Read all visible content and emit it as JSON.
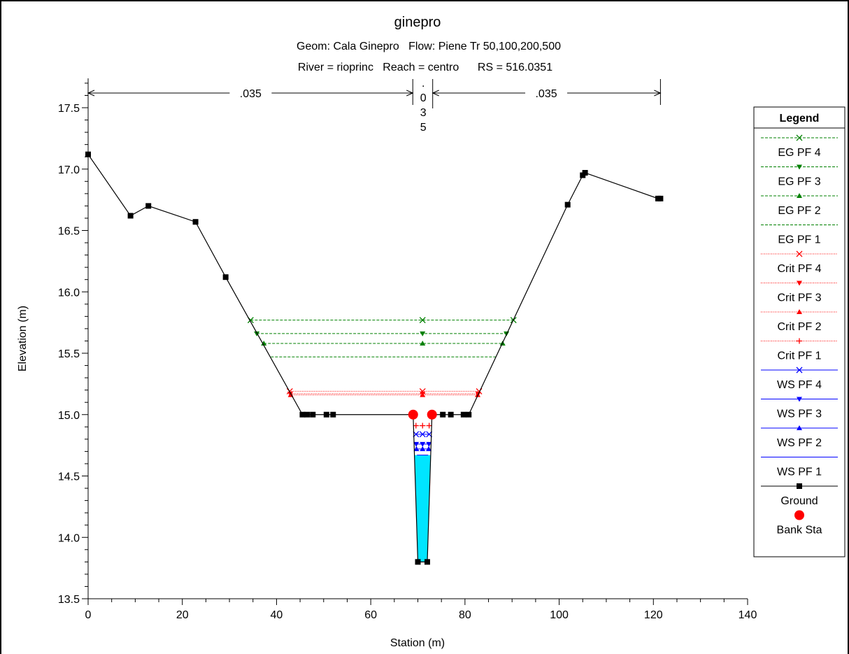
{
  "chart_data": {
    "type": "line",
    "title": "ginepro",
    "subtitle_1": "Geom: Cala Ginepro   Flow: Piene Tr 50,100,200,500",
    "subtitle_2": "River = rioprinc   Reach = centro      RS = 516.0351",
    "xlabel": "Station (m)",
    "ylabel": "Elevation (m)",
    "xlim": [
      0,
      140
    ],
    "ylim": [
      13.5,
      17.5
    ],
    "x_ticks": [
      "0",
      "20",
      "40",
      "60",
      "80",
      "100",
      "120",
      "140"
    ],
    "y_ticks": [
      "13.5",
      "14.0",
      "14.5",
      "15.0",
      "15.5",
      "16.0",
      "16.5",
      "17.0",
      "17.5"
    ],
    "grid": false,
    "legend_position": "right",
    "manning": {
      "left": ".035",
      "channel": ".035",
      "right": ".035",
      "left_bank_station": 69,
      "right_bank_station": 73,
      "left_end_station": 0,
      "right_end_station": 121.5
    },
    "legend": {
      "title": "Legend",
      "items": [
        {
          "label": "EG PF 4",
          "color": "#008000",
          "dash": "dashed",
          "marker": "x"
        },
        {
          "label": "EG PF 3",
          "color": "#008000",
          "dash": "dashed",
          "marker": "tri-down"
        },
        {
          "label": "EG PF 2",
          "color": "#008000",
          "dash": "dashed",
          "marker": "tri-up"
        },
        {
          "label": "EG PF 1",
          "color": "#008000",
          "dash": "dashed",
          "marker": "none"
        },
        {
          "label": "Crit PF 4",
          "color": "#ff0000",
          "dash": "dotted",
          "marker": "x"
        },
        {
          "label": "Crit PF 3",
          "color": "#ff0000",
          "dash": "dotted",
          "marker": "tri-down"
        },
        {
          "label": "Crit PF 2",
          "color": "#ff0000",
          "dash": "dotted",
          "marker": "tri-up"
        },
        {
          "label": "Crit PF 1",
          "color": "#ff0000",
          "dash": "dotted",
          "marker": "plus"
        },
        {
          "label": "WS PF 4",
          "color": "#0000ff",
          "dash": "solid",
          "marker": "x"
        },
        {
          "label": "WS PF 3",
          "color": "#0000ff",
          "dash": "solid",
          "marker": "tri-down"
        },
        {
          "label": "WS PF 2",
          "color": "#0000ff",
          "dash": "solid",
          "marker": "tri-up"
        },
        {
          "label": "WS PF 1",
          "color": "#0000ff",
          "dash": "solid",
          "marker": "none"
        },
        {
          "label": "Ground",
          "color": "#000000",
          "dash": "solid",
          "marker": "square"
        },
        {
          "label": "Bank Sta",
          "color": "#ff0000",
          "dash": "none",
          "marker": "circle"
        }
      ]
    },
    "ground": {
      "x": [
        0,
        9,
        12.8,
        22.8,
        29.2,
        45.5,
        46.5,
        47.7,
        50.6,
        52,
        69,
        70,
        72,
        73,
        75.3,
        77,
        79.7,
        80.8,
        101.8,
        105,
        105.5,
        121,
        121.5
      ],
      "y": [
        17.12,
        16.62,
        16.7,
        16.57,
        16.12,
        15.0,
        15.0,
        15.0,
        15.0,
        15.0,
        15.0,
        13.8,
        13.8,
        15.0,
        15.0,
        15.0,
        15.0,
        15.0,
        16.71,
        16.95,
        16.97,
        16.76,
        16.76
      ]
    },
    "bank_stations": {
      "x": [
        69,
        73
      ],
      "y": [
        15.0,
        15.0
      ]
    },
    "profiles": [
      {
        "name": "EG PF 4",
        "elevation": 15.77,
        "x_range": [
          34.5,
          90.3
        ],
        "marker_x": [
          34.5,
          71,
          90.3
        ]
      },
      {
        "name": "EG PF 3",
        "elevation": 15.66,
        "x_range": [
          35.8,
          88.8
        ],
        "marker_x": [
          35.8,
          71,
          88.8
        ]
      },
      {
        "name": "EG PF 2",
        "elevation": 15.58,
        "x_range": [
          37.3,
          88.0
        ],
        "marker_x": [
          37.3,
          71,
          88.0
        ]
      },
      {
        "name": "EG PF 1",
        "elevation": 15.47,
        "x_range": [
          38.8,
          86.8
        ],
        "marker_x": []
      },
      {
        "name": "Crit PF 4",
        "elevation": 15.19,
        "x_range": [
          42.8,
          83.0
        ],
        "marker_x": [
          42.8,
          71,
          83.0
        ]
      },
      {
        "name": "Crit PF 3",
        "elevation": 15.17,
        "x_range": [
          42.9,
          82.8
        ],
        "marker_x": [
          42.9,
          71,
          82.8
        ]
      },
      {
        "name": "Crit PF 2",
        "elevation": 15.16,
        "x_range": [
          43.0,
          82.7
        ],
        "marker_x": [
          43.0,
          71,
          82.7
        ]
      },
      {
        "name": "Crit PF 1",
        "elevation": 14.91,
        "x_range": [
          69.6,
          72.4
        ],
        "marker_x": [
          69.6,
          71,
          72.4
        ]
      },
      {
        "name": "WS PF 4",
        "elevation": 14.84,
        "x_range": [
          69.6,
          72.4
        ],
        "marker_x": [
          69.6,
          71,
          72.4
        ]
      },
      {
        "name": "WS PF 3",
        "elevation": 14.76,
        "x_range": [
          69.65,
          72.35
        ],
        "marker_x": [
          69.65,
          71,
          72.35
        ]
      },
      {
        "name": "WS PF 2",
        "elevation": 14.72,
        "x_range": [
          69.7,
          72.3
        ],
        "marker_x": [
          69.7,
          71,
          72.3
        ]
      },
      {
        "name": "WS PF 1",
        "elevation": 14.67,
        "x_range": [
          69.8,
          72.2
        ],
        "marker_x": []
      }
    ],
    "water_fill_color": "#00e5ff"
  }
}
